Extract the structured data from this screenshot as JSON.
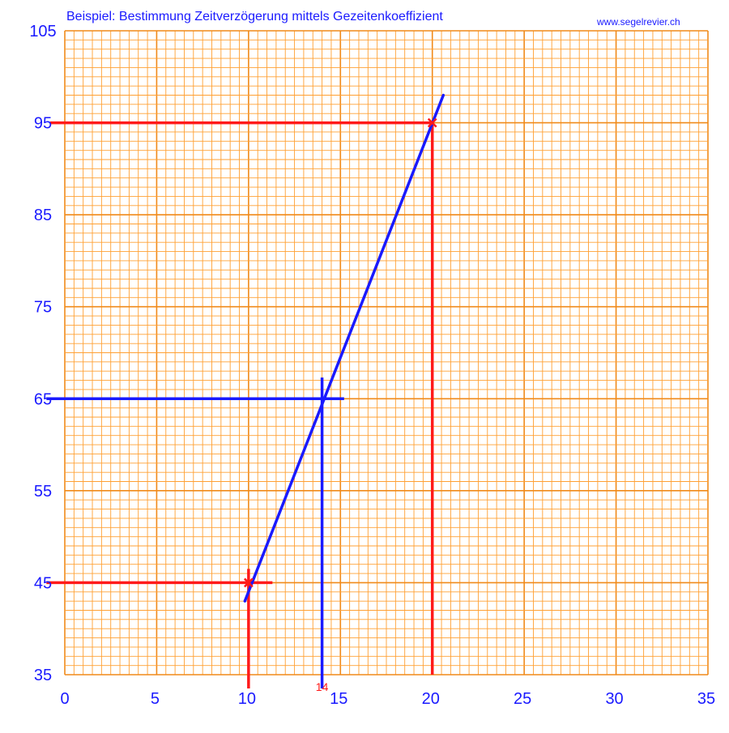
{
  "chart_data": {
    "type": "line",
    "title": "Beispiel: Bestimmung Zeitverzögerung mittels Gezeitenkoeffizient",
    "source_label": "www.segelrevier.ch",
    "xlabel": "",
    "ylabel": "",
    "xlim": [
      0,
      35
    ],
    "ylim": [
      35,
      105
    ],
    "x_ticks": [
      0,
      5,
      10,
      15,
      20,
      25,
      30,
      35
    ],
    "y_ticks": [
      35,
      45,
      55,
      65,
      75,
      85,
      95,
      105
    ],
    "x_tick_labels": [
      "0",
      "5",
      "10",
      "15",
      "20",
      "25",
      "30",
      "35"
    ],
    "y_tick_labels": [
      "35",
      "45",
      "55",
      "65",
      "75",
      "85",
      "95",
      "105"
    ],
    "grid": {
      "minor_x_step": 0.5,
      "minor_y_step": 1,
      "major_x_step": 5,
      "major_y_step": 10
    },
    "series": [
      {
        "role": "interpolation line",
        "color": "#1a1aff",
        "points": [
          [
            9.8,
            43
          ],
          [
            20.6,
            98
          ]
        ]
      }
    ],
    "known_points": [
      {
        "x": 10,
        "y": 45,
        "color": "#ff1a1a"
      },
      {
        "x": 20,
        "y": 95,
        "color": "#ff1a1a"
      }
    ],
    "reference_lines": [
      {
        "kind": "horizontal",
        "y": 95,
        "x_from": -0.8,
        "x_to": 20,
        "color": "#ff1a1a"
      },
      {
        "kind": "vertical",
        "x": 20,
        "y_from": 95,
        "y_to": 35,
        "color": "#ff1a1a"
      },
      {
        "kind": "horizontal",
        "y": 45,
        "x_from": -1,
        "x_to": 11.3,
        "color": "#ff1a1a"
      },
      {
        "kind": "vertical",
        "x": 10,
        "y_from": 46.5,
        "y_to": 33.5,
        "color": "#ff1a1a"
      },
      {
        "kind": "horizontal",
        "y": 65,
        "x_from": -1,
        "x_to": 15.2,
        "color": "#1a1aff"
      },
      {
        "kind": "vertical",
        "x": 14,
        "y_from": 67.3,
        "y_to": 33.5,
        "color": "#1a1aff"
      }
    ],
    "result": {
      "x": 14,
      "y": 65,
      "label": "14",
      "color": "#ff1a1a"
    }
  },
  "colors": {
    "grid_minor": "#ffa033",
    "grid_major": "#f08a1a",
    "axis_text": "#1a1aff",
    "blue": "#1a1aff",
    "red": "#ff1a1a"
  }
}
